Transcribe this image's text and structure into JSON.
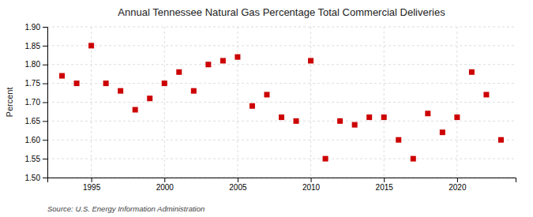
{
  "chart_data": {
    "type": "scatter",
    "title": "Annual Tennessee Natural Gas Percentage Total Commercial Deliveries",
    "ylabel": "Percent",
    "annotations": [
      "Source: U.S. Energy Information Administration"
    ],
    "x": [
      1993,
      1994,
      1995,
      1996,
      1997,
      1998,
      1999,
      2000,
      2001,
      2002,
      2003,
      2004,
      2005,
      2006,
      2007,
      2008,
      2009,
      2010,
      2011,
      2012,
      2013,
      2014,
      2015,
      2016,
      2017,
      2018,
      2019,
      2020,
      2021,
      2022,
      2023
    ],
    "values": [
      1.77,
      1.75,
      1.85,
      1.75,
      1.73,
      1.68,
      1.71,
      1.75,
      1.78,
      1.73,
      1.8,
      1.81,
      1.82,
      1.69,
      1.72,
      1.66,
      1.65,
      1.81,
      1.55,
      1.65,
      1.64,
      1.66,
      1.66,
      1.6,
      1.55,
      1.67,
      1.62,
      1.66,
      1.78,
      1.72,
      1.6
    ],
    "color": "#cc0000",
    "marker": "square",
    "xlim": [
      1992,
      2024
    ],
    "xticks": [
      1995,
      2000,
      2005,
      2010,
      2015,
      2020
    ],
    "ylim": [
      1.5,
      1.9
    ],
    "yticks": [
      {
        "value": 1.5,
        "label": "1.50"
      },
      1.55,
      {
        "value": 1.6,
        "label": "1.60"
      },
      1.65,
      {
        "value": 1.7,
        "label": "1.70"
      },
      1.75,
      {
        "value": 1.8,
        "label": "1.80"
      },
      1.85,
      {
        "value": 1.9,
        "label": "1.90"
      }
    ],
    "grid": true
  }
}
